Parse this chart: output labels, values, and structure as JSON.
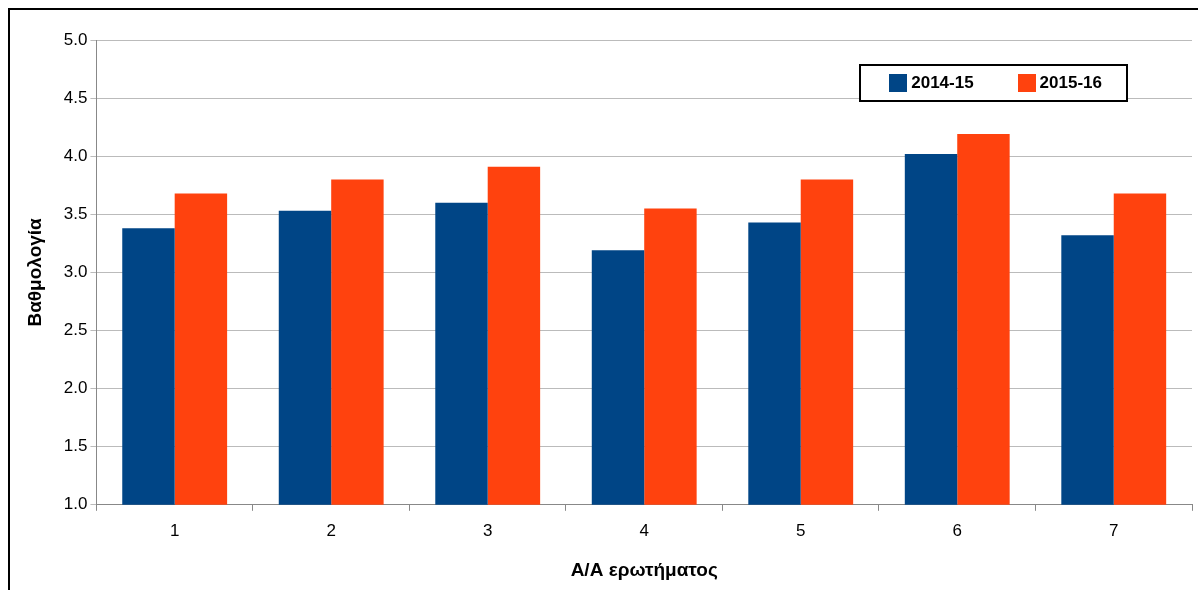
{
  "chart_data": {
    "type": "bar",
    "xlabel": "Α/Α ερωτήματος",
    "ylabel": "Βαθμολογία",
    "categories": [
      "1",
      "2",
      "3",
      "4",
      "5",
      "6",
      "7"
    ],
    "series": [
      {
        "name": "2014-15",
        "color": "#004586",
        "values": [
          3.38,
          3.53,
          3.6,
          3.19,
          3.43,
          4.02,
          3.32
        ]
      },
      {
        "name": "2015-16",
        "color": "#ff420e",
        "values": [
          3.68,
          3.8,
          3.91,
          3.55,
          3.8,
          4.19,
          3.68
        ]
      }
    ],
    "ylim": [
      1,
      5
    ],
    "yticks": [
      {
        "value": 1,
        "label": "1.0"
      },
      {
        "value": 1.5,
        "label": "1.5"
      },
      {
        "value": 2,
        "label": "2.0"
      },
      {
        "value": 2.5,
        "label": "2.5"
      },
      {
        "value": 3,
        "label": "3.0"
      },
      {
        "value": 3.5,
        "label": "3.5"
      },
      {
        "value": 4,
        "label": "4.0"
      },
      {
        "value": 4.5,
        "label": "4.5"
      },
      {
        "value": 5,
        "label": "5.0"
      }
    ],
    "grid": "y",
    "legend": "top right"
  }
}
